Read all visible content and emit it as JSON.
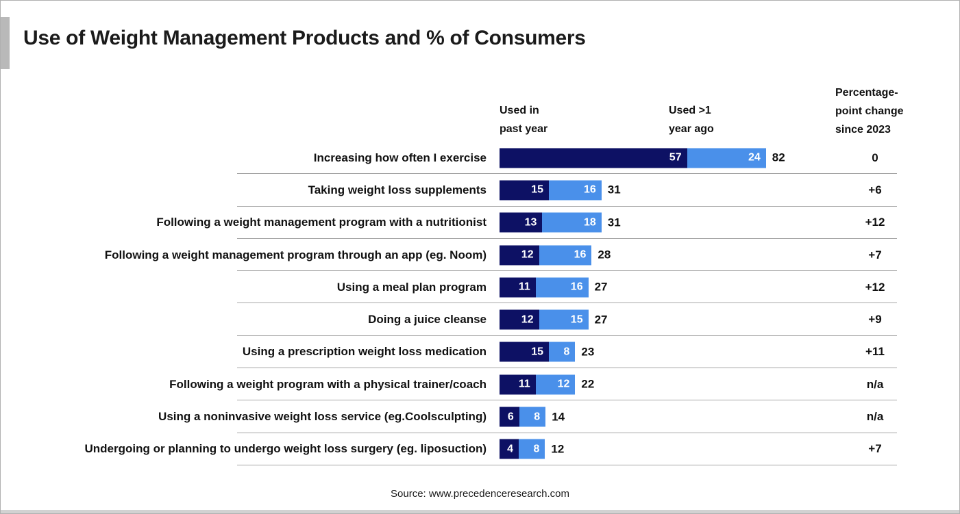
{
  "title": "Use of Weight Management Products and % of Consumers",
  "source": "Source: www.precedenceresearch.com",
  "chart_data": {
    "type": "bar",
    "orientation": "horizontal",
    "stacked": true,
    "title": "Use of Weight Management Products and % of Consumers",
    "legend": {
      "past_year": "Used in\npast year",
      "year_ago": "Used >1\nyear ago",
      "change": "Percentage-\npoint change\nsince 2023"
    },
    "categories": [
      "Increasing how often I exercise",
      "Taking weight loss supplements",
      "Following a weight management program with a nutritionist",
      "Following a weight management program through an app (eg. Noom)",
      "Using a meal plan program",
      "Doing a juice cleanse",
      "Using a prescription weight loss medication",
      "Following a weight program with a physical trainer/coach",
      "Using a noninvasive weight loss service (eg.Coolsculpting)",
      "Undergoing or planning to undergo weight loss surgery (eg. liposuction)"
    ],
    "series": [
      {
        "name": "Used in past year",
        "color": "#0d1164",
        "values": [
          57,
          15,
          13,
          12,
          11,
          12,
          15,
          11,
          6,
          4
        ]
      },
      {
        "name": "Used >1 year ago",
        "color": "#4a90ea",
        "values": [
          24,
          16,
          18,
          16,
          16,
          15,
          8,
          12,
          8,
          8
        ]
      }
    ],
    "totals": [
      82,
      31,
      31,
      28,
      27,
      27,
      23,
      22,
      14,
      12
    ],
    "changes": [
      "0",
      "+6",
      "+12",
      "+7",
      "+12",
      "+9",
      "+11",
      "n/a",
      "n/a",
      "+7"
    ],
    "value_unit": "% of consumers",
    "grid": "row-separators",
    "legend_position": "top"
  }
}
